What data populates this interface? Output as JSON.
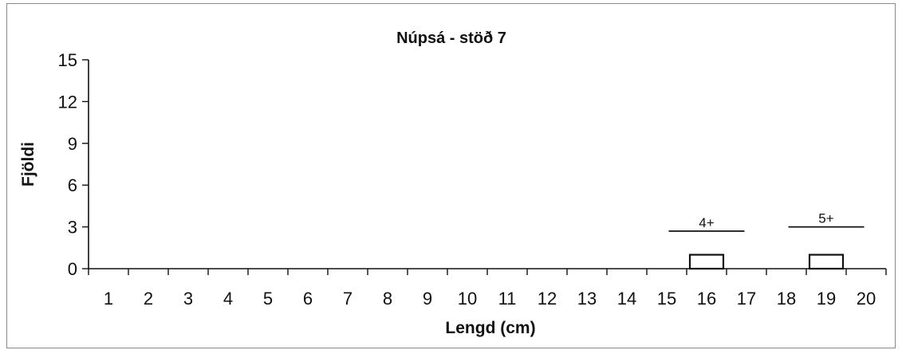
{
  "chart_data": {
    "type": "bar",
    "title": "Núpsá - stöð 7",
    "xlabel": "Lengd (cm)",
    "ylabel": "Fjöldi",
    "categories": [
      "1",
      "2",
      "3",
      "4",
      "5",
      "6",
      "7",
      "8",
      "9",
      "10",
      "11",
      "12",
      "13",
      "14",
      "15",
      "16",
      "17",
      "18",
      "19",
      "20"
    ],
    "values": [
      0,
      0,
      0,
      0,
      0,
      0,
      0,
      0,
      0,
      0,
      0,
      0,
      0,
      0,
      0,
      1,
      0,
      0,
      1,
      0
    ],
    "ylim": [
      0,
      15
    ],
    "yticks": [
      "0",
      "3",
      "6",
      "9",
      "12",
      "15"
    ],
    "grid": false,
    "legend": "none",
    "annotations": [
      {
        "label": "4+",
        "x_from": "15",
        "x_to": "17",
        "y": 2.7
      },
      {
        "label": "5+",
        "x_from": "18",
        "x_to": "20",
        "y": 3.0
      }
    ],
    "colors": {
      "bar_fill": "#ffffff",
      "bar_stroke": "#111111"
    }
  }
}
